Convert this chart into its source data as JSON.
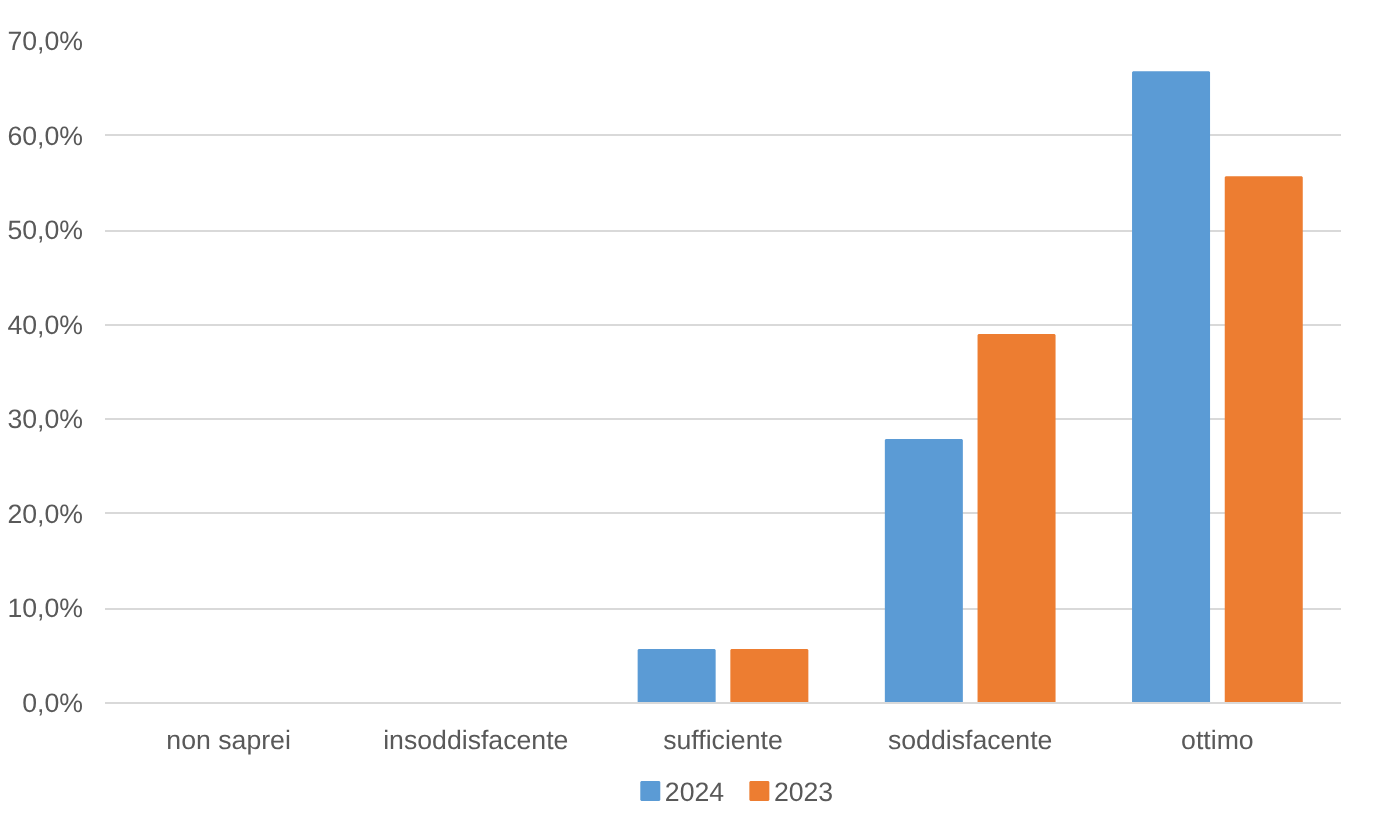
{
  "chart_data": {
    "type": "bar",
    "categories": [
      "non saprei",
      "insoddisfacente",
      "sufficiente",
      "soddisfacente",
      "ottimo"
    ],
    "series": [
      {
        "name": "2024",
        "color": "#5b9bd5",
        "values": [
          0,
          0,
          5.6,
          27.8,
          66.7
        ]
      },
      {
        "name": "2023",
        "color": "#ed7d31",
        "values": [
          0,
          0,
          5.6,
          38.9,
          55.6
        ]
      }
    ],
    "ylim": [
      0,
      70
    ],
    "yticks": [
      {
        "value": 0,
        "label": "0,0%"
      },
      {
        "value": 10,
        "label": "10,0%"
      },
      {
        "value": 20,
        "label": "20,0%"
      },
      {
        "value": 30,
        "label": "30,0%"
      },
      {
        "value": 40,
        "label": "40,0%"
      },
      {
        "value": 50,
        "label": "50,0%"
      },
      {
        "value": 60,
        "label": "60,0%"
      },
      {
        "value": 70,
        "label": "70,0%"
      }
    ],
    "grid": "y",
    "legend": "bottom"
  }
}
